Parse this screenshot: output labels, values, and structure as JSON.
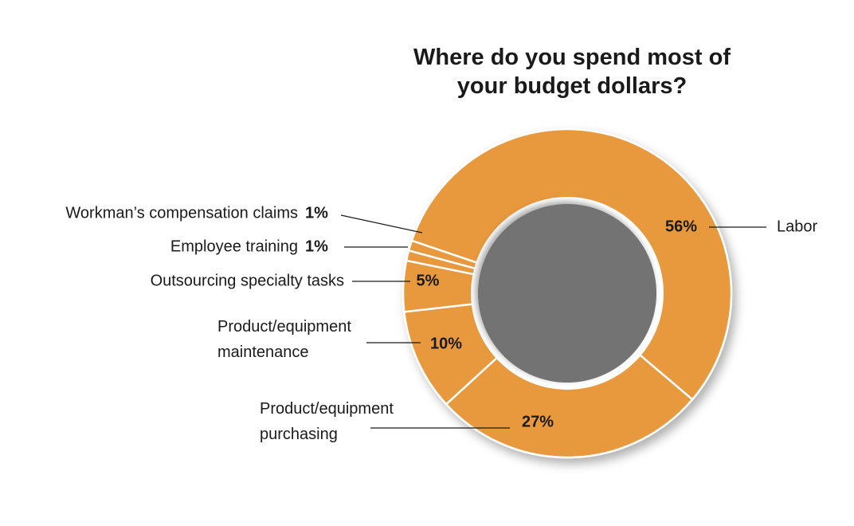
{
  "chart_data": {
    "type": "donut",
    "title": "Where do you spend most of your budget dollars?",
    "categories": [
      "Labor",
      "Product/equipment purchasing",
      "Product/equipment maintenance",
      "Outsourcing specialty tasks",
      "Employee training",
      "Workman’s compensation claims"
    ],
    "values": [
      56,
      27,
      10,
      5,
      1,
      1
    ],
    "value_labels": [
      "56%",
      "27%",
      "10%",
      "5%",
      "1%",
      "1%"
    ],
    "color": "#e8983e"
  }
}
